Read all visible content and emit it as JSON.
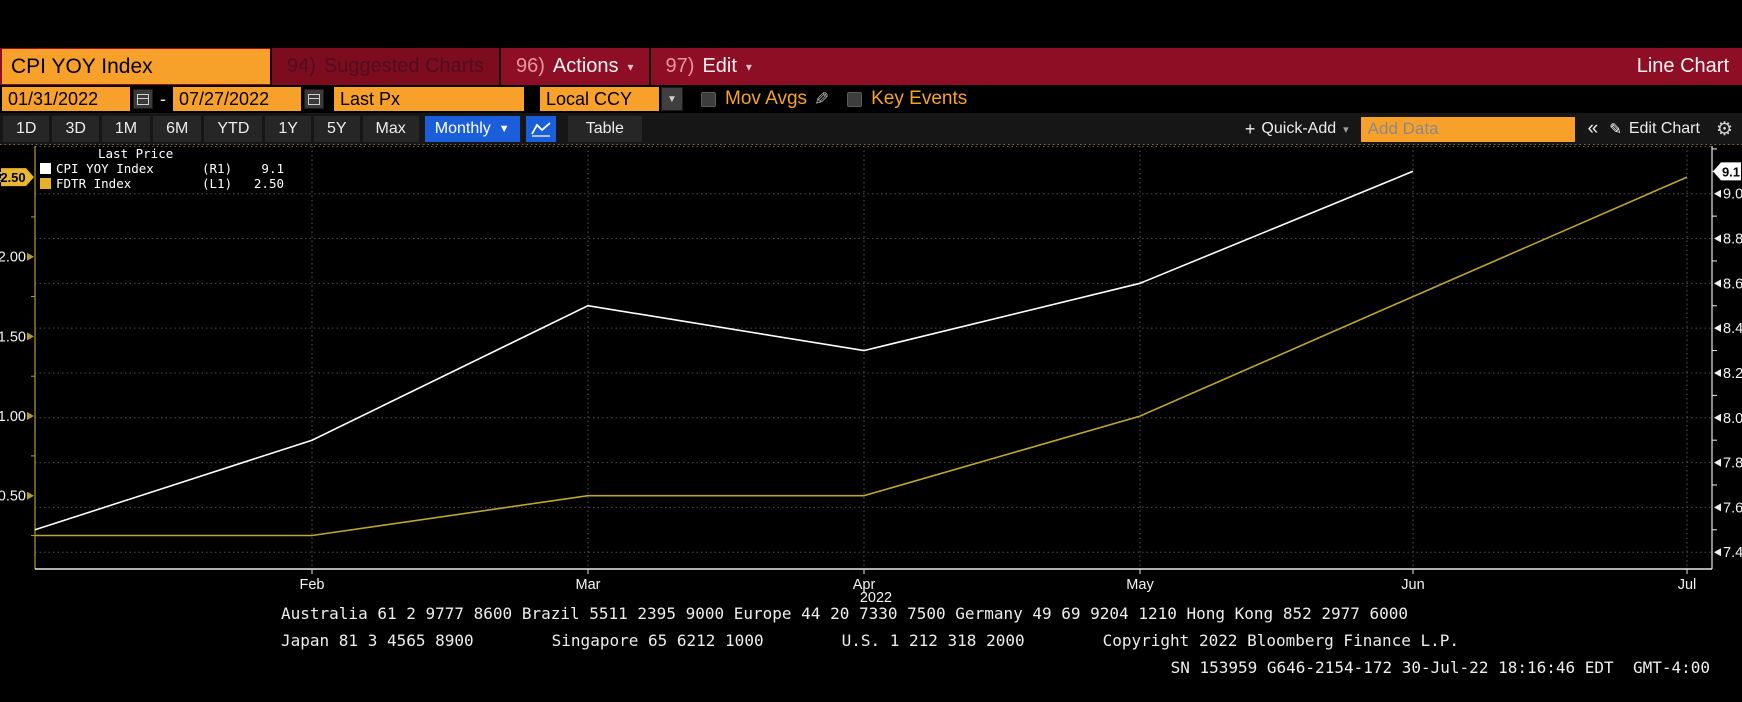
{
  "header": {
    "security": "CPI YOY Index",
    "tabs": [
      {
        "num": "94)",
        "label": "Suggested Charts",
        "dimmed": true
      },
      {
        "num": "96)",
        "label": "Actions",
        "dimmed": false
      },
      {
        "num": "97)",
        "label": "Edit",
        "dimmed": false
      }
    ],
    "right_title": "Line Chart"
  },
  "controls": {
    "date_from": "01/31/2022",
    "date_separator": "-",
    "date_to": "07/27/2022",
    "price_field": "Last Px",
    "currency": "Local CCY",
    "mov_avgs_label": "Mov Avgs",
    "key_events_label": "Key Events"
  },
  "toolbar": {
    "periods": [
      "1D",
      "3D",
      "1M",
      "6M",
      "YTD",
      "1Y",
      "5Y",
      "Max"
    ],
    "frequency": "Monthly",
    "frequency_caret": "▼",
    "table_label": "Table",
    "plus_sign": "+",
    "quick_add_label": "Quick-Add",
    "add_data_placeholder": "Add Data",
    "collapse_label": "«",
    "edit_chart_label": "Edit Chart"
  },
  "legend": {
    "title": "Last Price",
    "items": [
      {
        "name": "CPI YOY Index",
        "axis": "(R1)",
        "value": "9.1",
        "color": "#ffffff"
      },
      {
        "name": "FDTR Index",
        "axis": "(L1)",
        "value": "2.50",
        "color": "#e5b32a"
      }
    ]
  },
  "chart_data": {
    "type": "line",
    "title": "Line Chart",
    "x_dates": [
      "01/31/2022",
      "02/28/2022",
      "03/31/2022",
      "04/29/2022",
      "05/31/2022",
      "06/30/2022",
      "07/27/2022"
    ],
    "x_axis_labels": [
      "Feb",
      "Mar",
      "Apr",
      "May",
      "Jun",
      "Jul"
    ],
    "x_year_label": "2022",
    "series": [
      {
        "name": "CPI YOY Index",
        "axis": "R1",
        "color": "#ffffff",
        "values": [
          7.5,
          7.9,
          8.5,
          8.3,
          8.6,
          9.1,
          null
        ],
        "last_price": "9.1"
      },
      {
        "name": "FDTR Index",
        "axis": "L1",
        "color": "#c0a52d",
        "values": [
          0.25,
          0.25,
          0.5,
          0.5,
          1.0,
          1.75,
          2.5
        ],
        "last_price": "2.50"
      }
    ],
    "left_axis": {
      "ticks": [
        "2.50",
        "2.00",
        "1.50",
        "1.00",
        "0.50"
      ],
      "range": [
        0.04,
        2.695
      ],
      "last_tag": "2.50",
      "color": "#b59b26"
    },
    "right_axis": {
      "ticks": [
        "9.0",
        "8.8",
        "8.6",
        "8.4",
        "8.2",
        "8.0",
        "7.8",
        "7.6",
        "7.4"
      ],
      "range": [
        7.325,
        9.213
      ],
      "last_tag": "9.1",
      "color": "#ffffff"
    },
    "grid": "dotted",
    "legend_position": "top-left"
  },
  "footer": {
    "line1": "Australia 61 2 9777 8600 Brazil 5511 2395 9000 Europe 44 20 7330 7500 Germany 49 69 9204 1210 Hong Kong 852 2977 6000",
    "line2_parts": [
      "Japan 81 3 4565 8900",
      "Singapore 65 6212 1000",
      "U.S. 1 212 318 2000",
      "Copyright 2022 Bloomberg Finance L.P."
    ],
    "line3": "SN 153959 G646-2154-172 30-Jul-22 18:16:46 EDT  GMT-4:00"
  },
  "colors": {
    "bar_red": "#8d0e25",
    "amber": "#f8a12a",
    "accent_blue": "#1b5ed9",
    "cpi_line": "#ffffff",
    "fdtr_line": "#c0a52d",
    "grid_gray": "#4d4d4d"
  }
}
